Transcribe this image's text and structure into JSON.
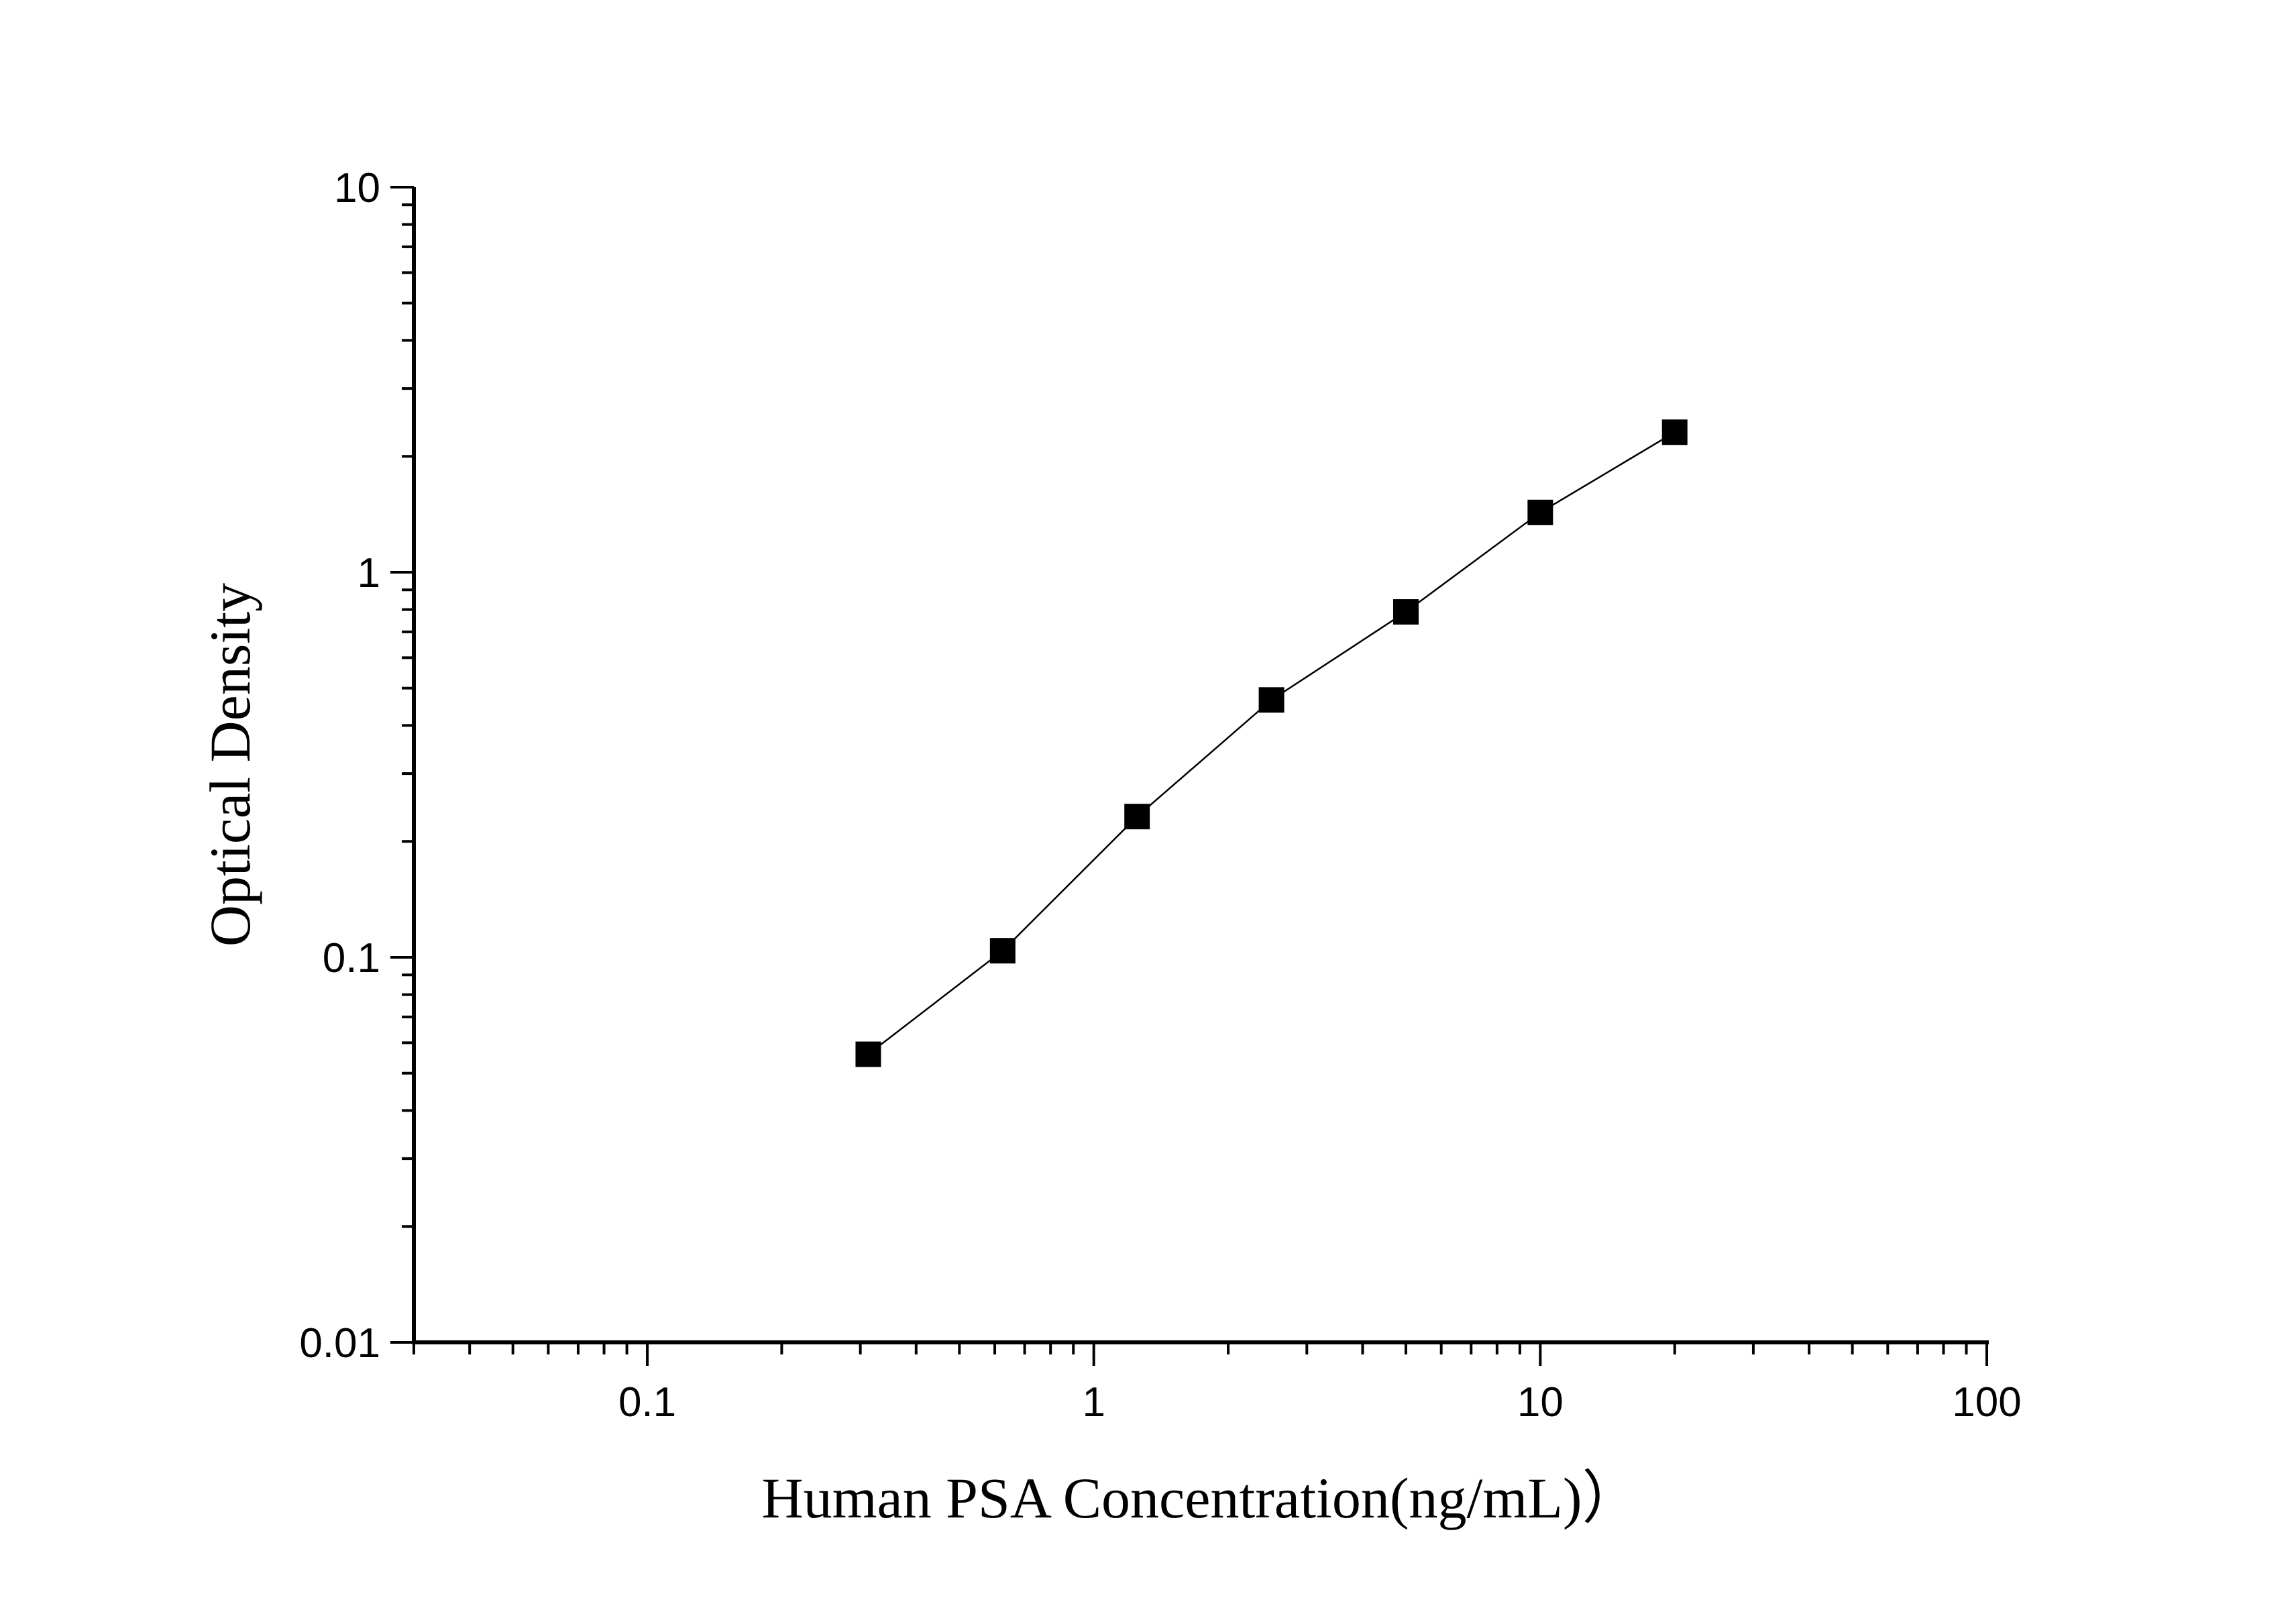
{
  "chart_data": {
    "type": "line",
    "title": "",
    "xlabel": "Human PSA Concentration(ng/mL)）",
    "ylabel": "Optical Density",
    "x_scale": "log",
    "y_scale": "log",
    "xlim": [
      0.03,
      100
    ],
    "ylim": [
      0.01,
      10
    ],
    "x_ticks": [
      0.1,
      1,
      10,
      100
    ],
    "x_tick_labels": [
      "0.1",
      "1",
      "10",
      "100"
    ],
    "y_ticks": [
      0.01,
      0.1,
      1,
      10
    ],
    "y_tick_labels": [
      "0.01",
      "0.1",
      "1",
      "10"
    ],
    "grid": false,
    "legend": "none",
    "marker": "filled-square",
    "color": "#000000",
    "series": [
      {
        "x": [
          0.3125,
          0.625,
          1.25,
          2.5,
          5,
          10,
          20
        ],
        "y": [
          0.056,
          0.104,
          0.232,
          0.466,
          0.789,
          1.43,
          2.31
        ]
      }
    ]
  }
}
